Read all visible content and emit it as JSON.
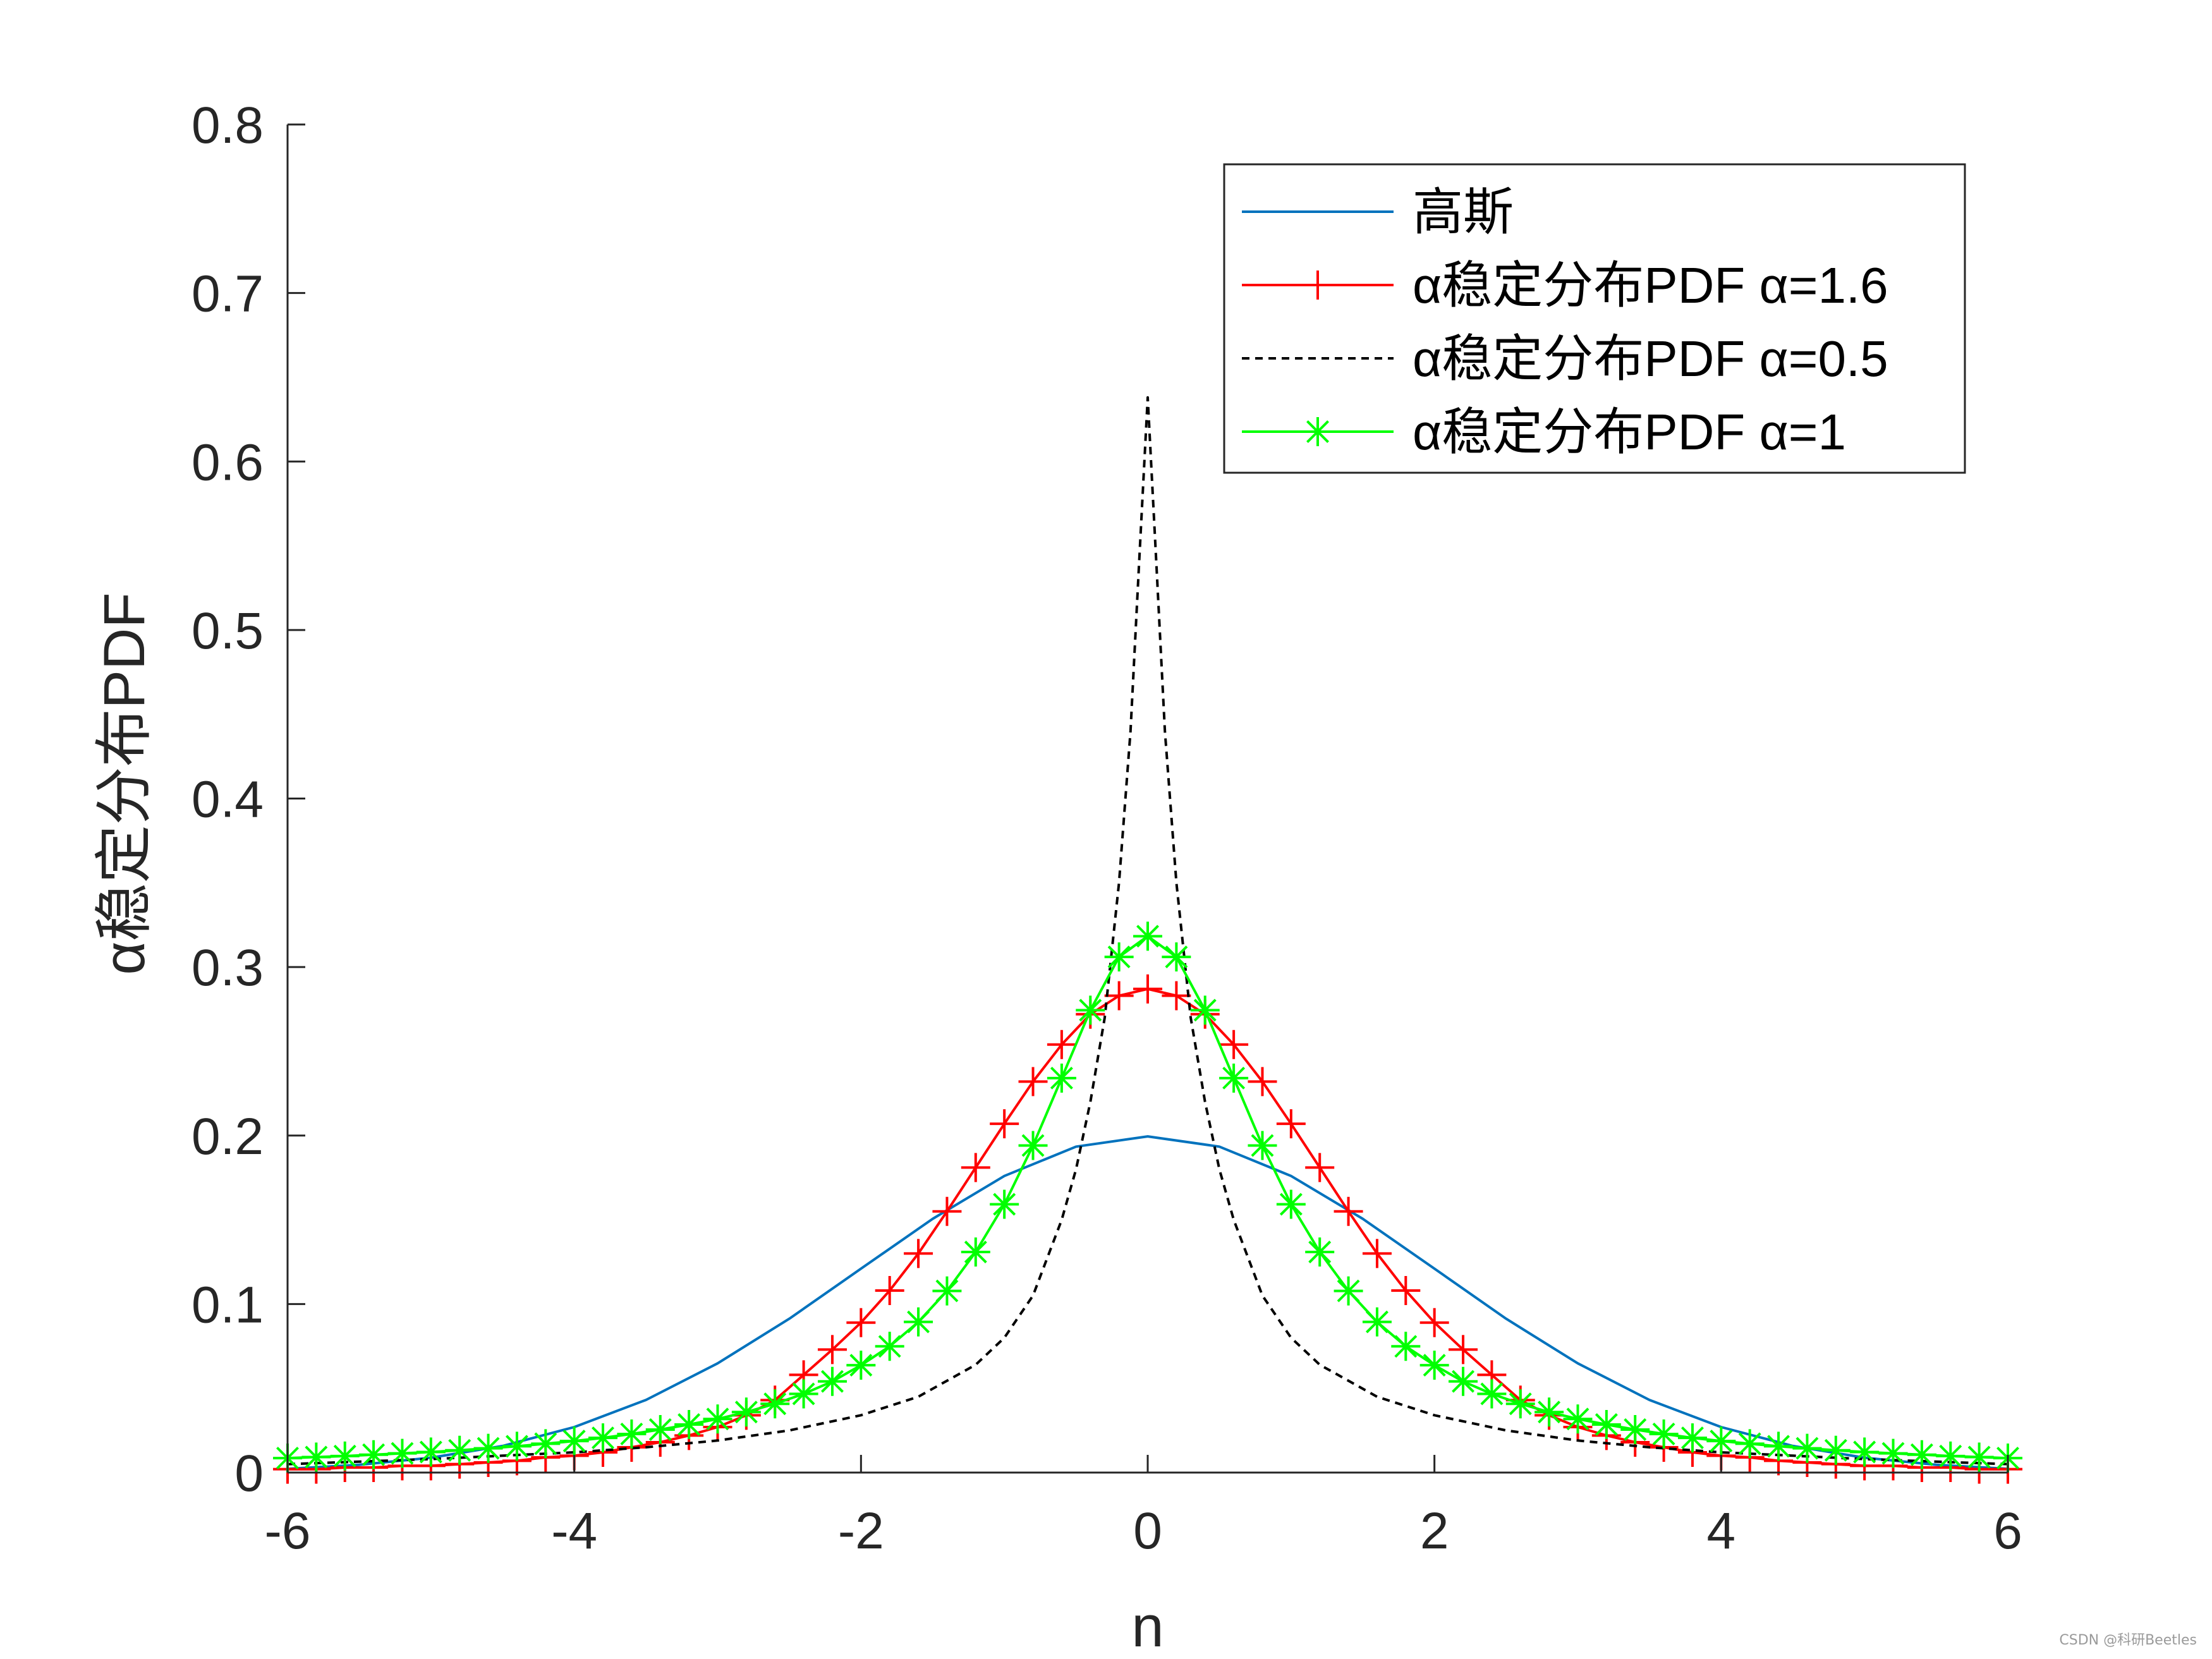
{
  "watermark": "CSDN @科研Beetles",
  "chart_data": {
    "type": "line",
    "xlabel": "n",
    "ylabel": "α稳定分布PDF",
    "xlim": [
      -6,
      6
    ],
    "ylim": [
      0,
      0.8
    ],
    "xticks": [
      -6,
      -4,
      -2,
      0,
      2,
      4,
      6
    ],
    "yticks": [
      0,
      0.1,
      0.2,
      0.3,
      0.4,
      0.5,
      0.6,
      0.7,
      0.8
    ],
    "xtick_labels": [
      "-6",
      "-4",
      "-2",
      "0",
      "2",
      "4",
      "6"
    ],
    "ytick_labels": [
      "0",
      "0.1",
      "0.2",
      "0.3",
      "0.4",
      "0.5",
      "0.6",
      "0.7",
      "0.8"
    ],
    "grid": false,
    "legend_position": "top-right",
    "series": [
      {
        "name": "高斯",
        "color": "#0072BD",
        "line": "solid",
        "marker": "none",
        "x": [
          -6,
          -5.5,
          -5,
          -4.5,
          -4,
          -3.5,
          -3,
          -2.5,
          -2,
          -1.5,
          -1,
          -0.5,
          0,
          0.5,
          1,
          1.5,
          2,
          2.5,
          3,
          3.5,
          4,
          4.5,
          5,
          5.5,
          6
        ],
        "y": [
          0.0022,
          0.0046,
          0.0088,
          0.0158,
          0.027,
          0.0431,
          0.0648,
          0.0913,
          0.121,
          0.1506,
          0.176,
          0.1934,
          0.1995,
          0.1934,
          0.176,
          0.1506,
          0.121,
          0.0913,
          0.0648,
          0.0431,
          0.027,
          0.0158,
          0.0088,
          0.0046,
          0.0022
        ]
      },
      {
        "name": "α稳定分布PDF α=1.6",
        "color": "#FF0000",
        "line": "solid",
        "marker": "plus",
        "x": [
          -6,
          -5.8,
          -5.6,
          -5.4,
          -5.2,
          -5,
          -4.8,
          -4.6,
          -4.4,
          -4.2,
          -4,
          -3.8,
          -3.6,
          -3.4,
          -3.2,
          -3,
          -2.8,
          -2.6,
          -2.4,
          -2.2,
          -2,
          -1.8,
          -1.6,
          -1.4,
          -1.2,
          -1,
          -0.8,
          -0.6,
          -0.4,
          -0.2,
          0,
          0.2,
          0.4,
          0.6,
          0.8,
          1,
          1.2,
          1.4,
          1.6,
          1.8,
          2,
          2.2,
          2.4,
          2.6,
          2.8,
          3,
          3.2,
          3.4,
          3.6,
          3.8,
          4,
          4.2,
          4.4,
          4.6,
          4.8,
          5,
          5.2,
          5.4,
          5.6,
          5.8,
          6
        ],
        "y": [
          0.002,
          0.002,
          0.003,
          0.003,
          0.004,
          0.004,
          0.005,
          0.006,
          0.007,
          0.009,
          0.01,
          0.012,
          0.015,
          0.018,
          0.022,
          0.027,
          0.034,
          0.043,
          0.058,
          0.073,
          0.089,
          0.108,
          0.13,
          0.155,
          0.181,
          0.207,
          0.232,
          0.254,
          0.272,
          0.283,
          0.287,
          0.283,
          0.272,
          0.254,
          0.232,
          0.207,
          0.181,
          0.155,
          0.13,
          0.108,
          0.089,
          0.073,
          0.058,
          0.043,
          0.034,
          0.027,
          0.022,
          0.018,
          0.015,
          0.012,
          0.01,
          0.009,
          0.007,
          0.006,
          0.005,
          0.004,
          0.004,
          0.003,
          0.003,
          0.002,
          0.002
        ]
      },
      {
        "name": "α稳定分布PDF α=0.5",
        "color": "#000000",
        "line": "dashed",
        "marker": "none",
        "x": [
          -6,
          -5,
          -4.5,
          -4,
          -3.5,
          -3,
          -2.5,
          -2,
          -1.6,
          -1.2,
          -1,
          -0.8,
          -0.6,
          -0.5,
          -0.4,
          -0.3,
          -0.2,
          -0.12,
          -0.06,
          0,
          0.06,
          0.12,
          0.2,
          0.3,
          0.4,
          0.5,
          0.6,
          0.8,
          1,
          1.2,
          1.6,
          2,
          2.5,
          3,
          3.5,
          4,
          4.5,
          5,
          6
        ],
        "y": [
          0.005,
          0.008,
          0.01,
          0.012,
          0.015,
          0.019,
          0.025,
          0.034,
          0.045,
          0.064,
          0.08,
          0.105,
          0.15,
          0.18,
          0.22,
          0.27,
          0.35,
          0.44,
          0.54,
          0.638,
          0.54,
          0.44,
          0.35,
          0.27,
          0.22,
          0.18,
          0.15,
          0.105,
          0.08,
          0.064,
          0.045,
          0.034,
          0.025,
          0.019,
          0.015,
          0.012,
          0.01,
          0.008,
          0.005
        ]
      },
      {
        "name": "α稳定分布PDF α=1",
        "color": "#00FF00",
        "line": "solid",
        "marker": "star",
        "x": [
          -6,
          -5.8,
          -5.6,
          -5.4,
          -5.2,
          -5,
          -4.8,
          -4.6,
          -4.4,
          -4.2,
          -4,
          -3.8,
          -3.6,
          -3.4,
          -3.2,
          -3,
          -2.8,
          -2.6,
          -2.4,
          -2.2,
          -2,
          -1.8,
          -1.6,
          -1.4,
          -1.2,
          -1,
          -0.8,
          -0.6,
          -0.4,
          -0.2,
          0,
          0.2,
          0.4,
          0.6,
          0.8,
          1,
          1.2,
          1.4,
          1.6,
          1.8,
          2,
          2.2,
          2.4,
          2.6,
          2.8,
          3,
          3.2,
          3.4,
          3.6,
          3.8,
          4,
          4.2,
          4.4,
          4.6,
          4.8,
          5,
          5.2,
          5.4,
          5.6,
          5.8,
          6
        ],
        "y": [
          0.0086,
          0.0092,
          0.0098,
          0.0106,
          0.0114,
          0.0122,
          0.0132,
          0.0144,
          0.0156,
          0.0171,
          0.0187,
          0.0206,
          0.0229,
          0.0255,
          0.0285,
          0.0318,
          0.0359,
          0.0408,
          0.0467,
          0.0541,
          0.0637,
          0.0749,
          0.0894,
          0.1078,
          0.1309,
          0.1592,
          0.1941,
          0.2341,
          0.2744,
          0.306,
          0.3183,
          0.306,
          0.2744,
          0.2341,
          0.1941,
          0.1592,
          0.1309,
          0.1078,
          0.0894,
          0.0749,
          0.0637,
          0.0541,
          0.0467,
          0.0408,
          0.0359,
          0.0318,
          0.0285,
          0.0255,
          0.0229,
          0.0206,
          0.0187,
          0.0171,
          0.0156,
          0.0144,
          0.0132,
          0.0122,
          0.0114,
          0.0106,
          0.0098,
          0.0092,
          0.0086
        ]
      }
    ]
  }
}
